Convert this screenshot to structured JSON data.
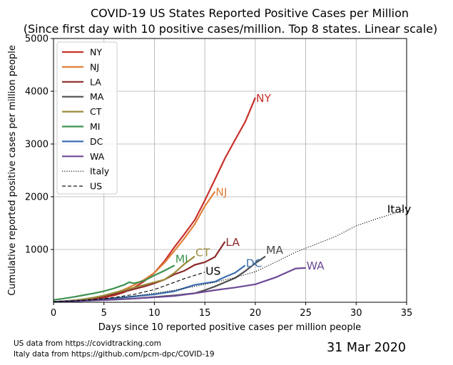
{
  "chart_data": {
    "type": "line",
    "title": "COVID-19 US States Reported Positive Cases per Million",
    "subtitle": "(Since first day with 10 positive cases/million. Top 8 states. Linear scale)",
    "xlabel": "Days since 10 reported positive cases per million people",
    "ylabel": "Cumulative reported positive cases per million people",
    "xlim": [
      0,
      35
    ],
    "ylim": [
      0,
      5000
    ],
    "xticks": [
      "0",
      "5",
      "10",
      "15",
      "20",
      "25",
      "30",
      "35"
    ],
    "yticks": [
      "1000",
      "2000",
      "3000",
      "4000",
      "5000"
    ],
    "grid": true,
    "legend_position": "upper-left",
    "date_label": "31 Mar 2020",
    "footnotes": [
      "US data from https://covidtracking.com",
      "Italy data from https://github.com/pcm-dpc/COVID-19"
    ],
    "series": [
      {
        "name": "NY",
        "color": "#c8302c",
        "style": "solid",
        "x": [
          0,
          1,
          2,
          3,
          4,
          5,
          6,
          7,
          8,
          9,
          10,
          11,
          12,
          13,
          14,
          15,
          16,
          17,
          18,
          19,
          20
        ],
        "y": [
          10,
          15,
          25,
          40,
          60,
          90,
          130,
          190,
          280,
          400,
          560,
          780,
          1050,
          1300,
          1560,
          1930,
          2330,
          2730,
          3080,
          3420,
          3880
        ]
      },
      {
        "name": "NJ",
        "color": "#e0803a",
        "style": "solid",
        "x": [
          0,
          1,
          2,
          3,
          4,
          5,
          6,
          7,
          8,
          9,
          10,
          11,
          12,
          13,
          14,
          15,
          16
        ],
        "y": [
          10,
          15,
          30,
          50,
          80,
          120,
          170,
          240,
          330,
          430,
          560,
          750,
          980,
          1220,
          1480,
          1820,
          2100
        ]
      },
      {
        "name": "LA",
        "color": "#8b2a2a",
        "style": "solid",
        "x": [
          0,
          1,
          2,
          3,
          4,
          5,
          6,
          7,
          8,
          9,
          10,
          11,
          12,
          13,
          14,
          15,
          16,
          17
        ],
        "y": [
          10,
          20,
          35,
          55,
          80,
          110,
          150,
          200,
          250,
          300,
          360,
          430,
          530,
          600,
          710,
          760,
          860,
          1150
        ]
      },
      {
        "name": "MA",
        "color": "#4d4d4d",
        "style": "solid",
        "x": [
          0,
          2,
          4,
          6,
          8,
          10,
          12,
          14,
          15,
          16,
          17,
          18,
          19,
          20,
          21
        ],
        "y": [
          10,
          20,
          35,
          50,
          70,
          100,
          130,
          170,
          230,
          300,
          380,
          460,
          590,
          740,
          870
        ]
      },
      {
        "name": "CT",
        "color": "#9a8b3a",
        "style": "solid",
        "x": [
          0,
          1,
          2,
          3,
          4,
          5,
          6,
          7,
          8,
          9,
          10,
          11,
          12,
          13,
          14
        ],
        "y": [
          10,
          20,
          35,
          60,
          90,
          130,
          180,
          230,
          280,
          330,
          380,
          430,
          560,
          730,
          870
        ]
      },
      {
        "name": "MI",
        "color": "#3d9150",
        "style": "solid",
        "x": [
          0,
          1,
          2,
          3,
          4,
          5,
          6,
          7,
          7.5,
          8,
          9,
          10,
          11,
          12
        ],
        "y": [
          45,
          70,
          100,
          135,
          170,
          210,
          265,
          330,
          380,
          360,
          410,
          510,
          600,
          700
        ]
      },
      {
        "name": "DC",
        "color": "#3a6fb0",
        "style": "solid",
        "x": [
          0,
          2,
          4,
          6,
          8,
          10,
          12,
          14,
          16,
          17,
          18,
          19
        ],
        "y": [
          10,
          25,
          45,
          75,
          110,
          150,
          210,
          330,
          390,
          480,
          560,
          700
        ]
      },
      {
        "name": "WA",
        "color": "#6c4a96",
        "style": "solid",
        "x": [
          0,
          2,
          4,
          6,
          8,
          10,
          12,
          14,
          16,
          18,
          19,
          20,
          22,
          24,
          25
        ],
        "y": [
          10,
          20,
          35,
          50,
          70,
          95,
          120,
          170,
          230,
          280,
          310,
          340,
          470,
          640,
          650
        ]
      },
      {
        "name": "Italy",
        "color": "#000000",
        "style": "dotted",
        "x": [
          0,
          2,
          4,
          6,
          8,
          10,
          12,
          14,
          16,
          18,
          20,
          22,
          24,
          26,
          28,
          30,
          32,
          34,
          35
        ],
        "y": [
          10,
          25,
          45,
          80,
          120,
          170,
          230,
          300,
          380,
          470,
          580,
          760,
          950,
          1100,
          1250,
          1450,
          1580,
          1700,
          1780
        ]
      },
      {
        "name": "US",
        "color": "#000000",
        "style": "dashed",
        "x": [
          0,
          2,
          4,
          6,
          8,
          10,
          12,
          13,
          14,
          15
        ],
        "y": [
          10,
          25,
          50,
          90,
          150,
          240,
          380,
          450,
          510,
          570
        ]
      }
    ],
    "end_labels": [
      {
        "text": "NY",
        "color": "#c8302c",
        "x": 20,
        "y": 3880
      },
      {
        "text": "NJ",
        "color": "#e0803a",
        "x": 16,
        "y": 2100
      },
      {
        "text": "LA",
        "color": "#8b2a2a",
        "x": 17,
        "y": 1150
      },
      {
        "text": "MA",
        "color": "#4d4d4d",
        "x": 21,
        "y": 1000
      },
      {
        "text": "CT",
        "color": "#9a8b3a",
        "x": 14,
        "y": 950
      },
      {
        "text": "MI",
        "color": "#3d9150",
        "x": 12,
        "y": 830
      },
      {
        "text": "DC",
        "color": "#3a6fb0",
        "x": 19,
        "y": 750
      },
      {
        "text": "WA",
        "color": "#6c4a96",
        "x": 25,
        "y": 700
      },
      {
        "text": "US",
        "color": "#000000",
        "x": 15,
        "y": 600
      },
      {
        "text": "Italy",
        "color": "#000000",
        "x": 33,
        "y": 1780
      }
    ]
  }
}
